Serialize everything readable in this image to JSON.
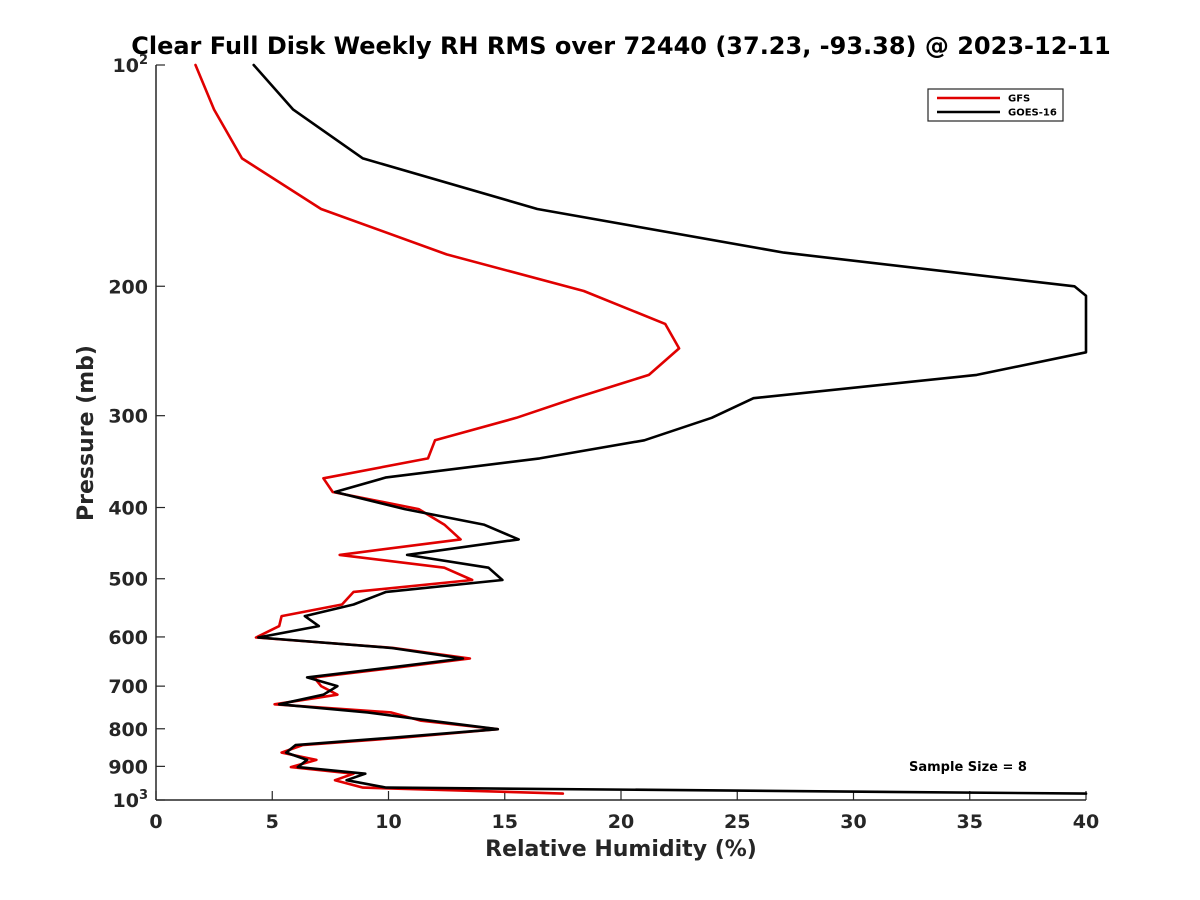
{
  "chart_data": {
    "type": "line",
    "title": "Clear Full Disk Weekly RH RMS over 72440 (37.23, -93.38) @ 2023-12-11",
    "xlabel": "Relative Humidity (%)",
    "ylabel": "Pressure (mb)",
    "xlim": [
      0,
      40
    ],
    "ylim": [
      100,
      1000
    ],
    "y_scale": "log",
    "y_reversed": true,
    "x_ticks": [
      0,
      5,
      10,
      15,
      20,
      25,
      30,
      35,
      40
    ],
    "x_tick_labels": [
      "0",
      "5",
      "10",
      "15",
      "20",
      "25",
      "30",
      "35",
      "40"
    ],
    "y_ticks": [
      100,
      200,
      300,
      400,
      500,
      600,
      700,
      800,
      900,
      1000
    ],
    "y_tick_labels": [
      {
        "base": "10",
        "sup": "2"
      },
      {
        "base": "200",
        "sup": ""
      },
      {
        "base": "300",
        "sup": ""
      },
      {
        "base": "400",
        "sup": ""
      },
      {
        "base": "500",
        "sup": ""
      },
      {
        "base": "600",
        "sup": ""
      },
      {
        "base": "700",
        "sup": ""
      },
      {
        "base": "800",
        "sup": ""
      },
      {
        "base": "900",
        "sup": ""
      },
      {
        "base": "10",
        "sup": "3"
      }
    ],
    "grid": false,
    "legend_position": "top-right",
    "annotation": "Sample Size = 8",
    "series": [
      {
        "name": "GFS",
        "color": "#e00000",
        "points": [
          [
            1.7,
            100
          ],
          [
            2.5,
            115
          ],
          [
            3.7,
            134
          ],
          [
            7.1,
            157
          ],
          [
            12.5,
            181
          ],
          [
            18.4,
            203
          ],
          [
            21.9,
            225
          ],
          [
            22.5,
            243
          ],
          [
            21.2,
            264
          ],
          [
            18.0,
            284
          ],
          [
            15.5,
            302
          ],
          [
            12.0,
            324
          ],
          [
            11.7,
            343
          ],
          [
            7.2,
            365
          ],
          [
            7.6,
            381
          ],
          [
            11.3,
            402
          ],
          [
            12.4,
            422
          ],
          [
            13.1,
            442
          ],
          [
            7.9,
            464
          ],
          [
            12.4,
            483
          ],
          [
            13.6,
            502
          ],
          [
            8.5,
            521
          ],
          [
            8.0,
            542
          ],
          [
            5.4,
            562
          ],
          [
            5.3,
            580
          ],
          [
            4.3,
            601
          ],
          [
            10.2,
            621
          ],
          [
            13.5,
            642
          ],
          [
            10.4,
            660
          ],
          [
            6.8,
            681
          ],
          [
            7.1,
            700
          ],
          [
            7.8,
            719
          ],
          [
            5.1,
            741
          ],
          [
            10.1,
            760
          ],
          [
            11.4,
            780
          ],
          [
            14.7,
            801
          ],
          [
            10.5,
            823
          ],
          [
            6.3,
            842
          ],
          [
            5.4,
            862
          ],
          [
            6.9,
            882
          ],
          [
            5.8,
            902
          ],
          [
            8.5,
            921
          ],
          [
            7.7,
            940
          ],
          [
            8.9,
            962
          ],
          [
            17.5,
            980
          ]
        ]
      },
      {
        "name": "GOES-16",
        "color": "#000000",
        "points": [
          [
            4.2,
            100
          ],
          [
            5.9,
            115
          ],
          [
            8.9,
            134
          ],
          [
            16.4,
            157
          ],
          [
            27.0,
            180
          ],
          [
            39.5,
            200
          ],
          [
            40.0,
            206
          ],
          [
            40.0,
            246
          ],
          [
            35.3,
            264
          ],
          [
            25.7,
            284
          ],
          [
            23.9,
            302
          ],
          [
            21.0,
            324
          ],
          [
            16.5,
            343
          ],
          [
            9.9,
            364
          ],
          [
            7.7,
            381
          ],
          [
            10.7,
            402
          ],
          [
            14.1,
            422
          ],
          [
            15.6,
            442
          ],
          [
            10.8,
            464
          ],
          [
            14.3,
            483
          ],
          [
            14.9,
            502
          ],
          [
            9.9,
            521
          ],
          [
            8.5,
            542
          ],
          [
            6.4,
            562
          ],
          [
            7.0,
            580
          ],
          [
            4.4,
            601
          ],
          [
            10.1,
            621
          ],
          [
            13.2,
            642
          ],
          [
            10.1,
            660
          ],
          [
            6.5,
            681
          ],
          [
            7.8,
            700
          ],
          [
            7.2,
            719
          ],
          [
            5.3,
            741
          ],
          [
            9.1,
            760
          ],
          [
            11.8,
            780
          ],
          [
            14.7,
            801
          ],
          [
            10.1,
            823
          ],
          [
            6.0,
            842
          ],
          [
            5.6,
            862
          ],
          [
            6.5,
            882
          ],
          [
            6.1,
            902
          ],
          [
            9.0,
            921
          ],
          [
            8.2,
            940
          ],
          [
            9.9,
            962
          ],
          [
            40.0,
            980
          ]
        ]
      }
    ]
  }
}
